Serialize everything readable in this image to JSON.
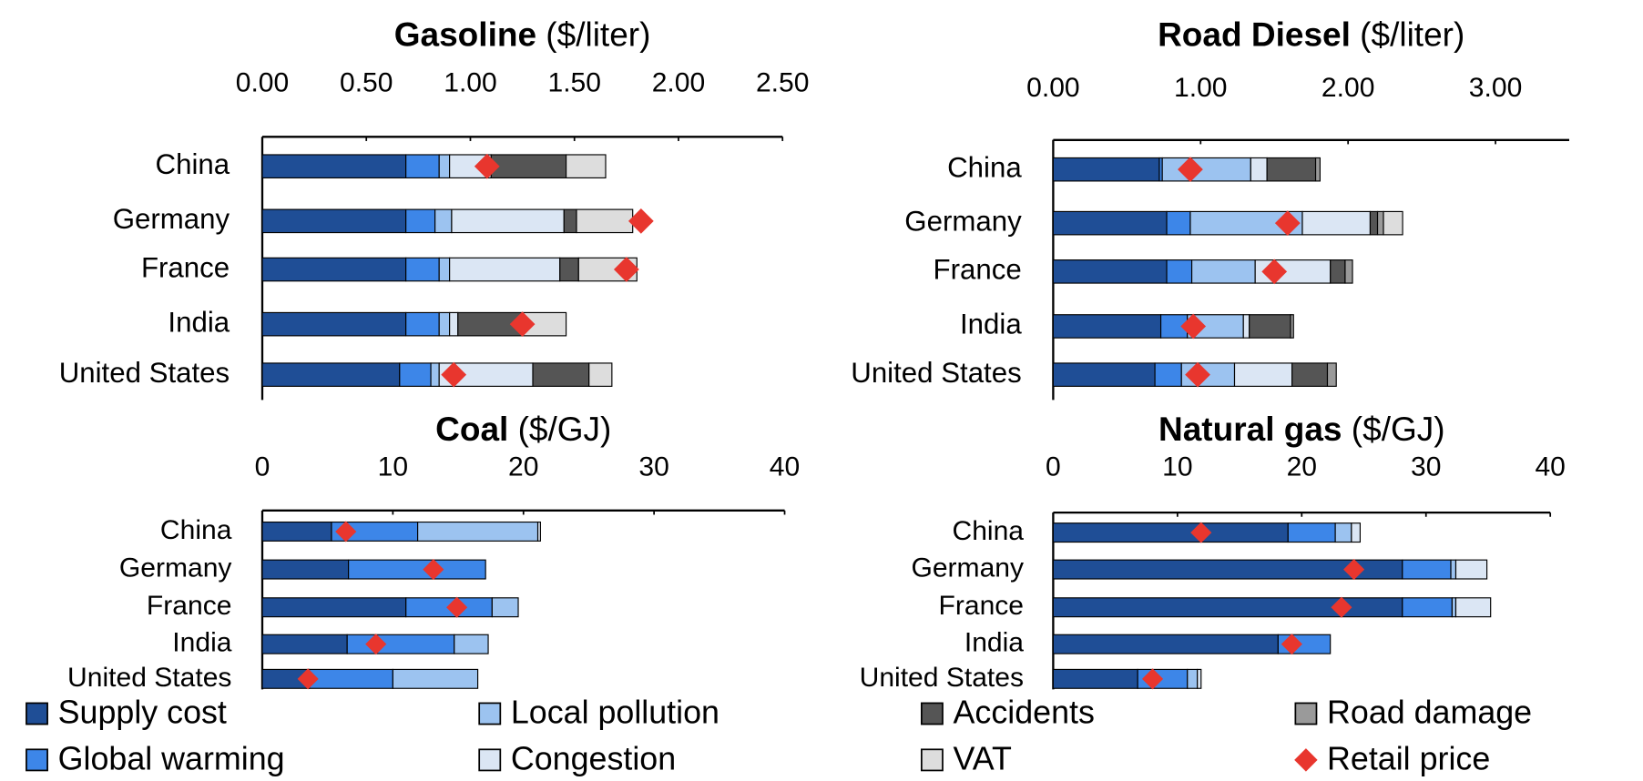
{
  "legend": [
    {
      "name": "Supply cost",
      "color": "#1f4e96"
    },
    {
      "name": "Global warming",
      "color": "#3d86e8"
    },
    {
      "name": "Local pollution",
      "color": "#9cc3f0"
    },
    {
      "name": "Congestion",
      "color": "#dbe6f4"
    },
    {
      "name": "Accidents",
      "color": "#555555"
    },
    {
      "name": "Road damage",
      "color": "#9a9a9a"
    },
    {
      "name": "VAT",
      "color": "#dddddd"
    },
    {
      "name": "Retail price",
      "color": "#e8362e"
    }
  ],
  "chart_data": [
    {
      "type": "stacked-bar",
      "title": "Gasoline",
      "title_unit": "($/liter)",
      "categories": [
        "China",
        "Germany",
        "France",
        "India",
        "United States"
      ],
      "xlim": [
        0,
        2.5
      ],
      "xticks": [
        {
          "value": 0,
          "label": "0.00"
        },
        {
          "value": 0.5,
          "label": "0.50"
        },
        {
          "value": 1,
          "label": "1.00"
        },
        {
          "value": 1.5,
          "label": "1.50"
        },
        {
          "value": 2,
          "label": "2.00"
        },
        {
          "value": 2.5,
          "label": "2.50"
        }
      ],
      "series": [
        {
          "values": [
            0.69,
            0.69,
            0.69,
            0.69,
            0.66
          ]
        },
        {
          "values": [
            0.16,
            0.14,
            0.16,
            0.16,
            0.15
          ]
        },
        {
          "values": [
            0.05,
            0.08,
            0.05,
            0.05,
            0.04
          ]
        },
        {
          "values": [
            0.2,
            0.54,
            0.53,
            0.04,
            0.45
          ]
        },
        {
          "values": [
            0.36,
            0.06,
            0.09,
            0.31,
            0.27
          ]
        },
        {
          "values": [
            null,
            null,
            null,
            null,
            null
          ]
        },
        {
          "values": [
            0.19,
            0.27,
            0.28,
            0.21,
            0.11
          ]
        },
        {
          "values": [
            1.08,
            1.82,
            1.75,
            1.25,
            0.92
          ]
        }
      ]
    },
    {
      "type": "stacked-bar",
      "title": "Road Diesel",
      "title_unit": "($/liter)",
      "categories": [
        "China",
        "Germany",
        "France",
        "India",
        "United States"
      ],
      "xlim": [
        0,
        3.5
      ],
      "xticks": [
        {
          "value": 0,
          "label": "0.00"
        },
        {
          "value": 1,
          "label": "1.00"
        },
        {
          "value": 2,
          "label": "2.00"
        },
        {
          "value": 3,
          "label": "3.00"
        }
      ],
      "series": [
        {
          "values": [
            0.72,
            0.77,
            0.77,
            0.73,
            0.69
          ]
        },
        {
          "values": [
            0.02,
            0.16,
            0.17,
            0.18,
            0.18
          ]
        },
        {
          "values": [
            0.6,
            0.76,
            0.43,
            0.38,
            0.36
          ]
        },
        {
          "values": [
            0.11,
            0.46,
            0.51,
            0.04,
            0.39
          ]
        },
        {
          "values": [
            0.33,
            0.05,
            0.1,
            0.28,
            0.24
          ]
        },
        {
          "values": [
            0.03,
            0.04,
            0.05,
            0.02,
            0.06
          ]
        },
        {
          "values": [
            null,
            0.13,
            null,
            null,
            null
          ]
        },
        {
          "values": [
            0.93,
            1.59,
            1.5,
            0.95,
            0.98
          ]
        }
      ]
    },
    {
      "type": "stacked-bar",
      "title": "Coal",
      "title_unit": "($/GJ)",
      "categories": [
        "China",
        "Germany",
        "France",
        "India",
        "United States"
      ],
      "xlim": [
        0,
        40
      ],
      "xticks": [
        0,
        10,
        20,
        30,
        40
      ],
      "series": [
        {
          "values": [
            5.3,
            6.6,
            11.0,
            6.5,
            3.6
          ]
        },
        {
          "values": [
            6.6,
            10.5,
            6.6,
            8.2,
            6.4
          ]
        },
        {
          "values": [
            9.2,
            null,
            2.0,
            2.6,
            6.5
          ]
        },
        {
          "values": [
            0.2,
            null,
            null,
            null,
            null
          ]
        },
        {
          "values": [
            null,
            null,
            null,
            null,
            null
          ]
        },
        {
          "values": [
            null,
            null,
            null,
            null,
            null
          ]
        },
        {
          "values": [
            null,
            null,
            null,
            null,
            null
          ]
        },
        {
          "values": [
            6.4,
            13.1,
            14.9,
            8.7,
            3.5
          ]
        }
      ]
    },
    {
      "type": "stacked-bar",
      "title": "Natural gas",
      "title_unit": "($/GJ)",
      "categories": [
        "China",
        "Germany",
        "France",
        "India",
        "United States"
      ],
      "xlim": [
        0,
        40
      ],
      "xticks": [
        0,
        10,
        20,
        30,
        40
      ],
      "series": [
        {
          "values": [
            18.9,
            28.1,
            28.1,
            18.1,
            6.8
          ]
        },
        {
          "values": [
            3.8,
            3.9,
            4.0,
            4.2,
            4.0
          ]
        },
        {
          "values": [
            1.3,
            0.4,
            0.3,
            null,
            0.8
          ]
        },
        {
          "values": [
            0.7,
            2.5,
            2.8,
            null,
            0.3
          ]
        },
        {
          "values": [
            null,
            null,
            null,
            null,
            null
          ]
        },
        {
          "values": [
            null,
            null,
            null,
            null,
            null
          ]
        },
        {
          "values": [
            null,
            null,
            null,
            null,
            null
          ]
        },
        {
          "values": [
            11.9,
            24.2,
            23.2,
            19.2,
            8.0
          ]
        }
      ]
    }
  ]
}
